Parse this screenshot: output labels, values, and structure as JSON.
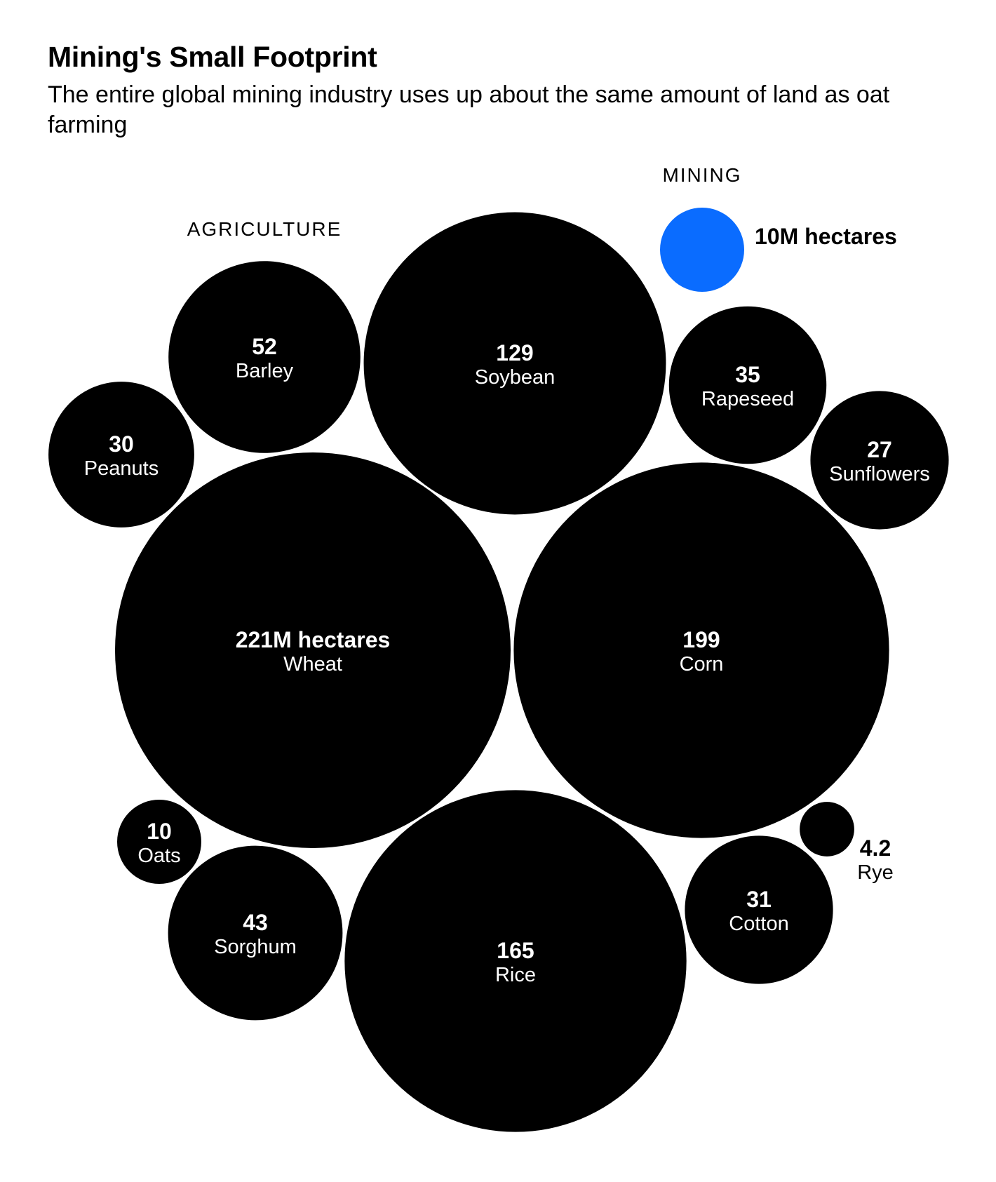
{
  "title": "Mining's Small Footprint",
  "subtitle": "The entire global mining industry uses up about the same amount of land as oat farming",
  "colors": {
    "agriculture": "#000000",
    "mining": "#0a6cff",
    "bubble_text": "#ffffff",
    "outside_text": "#000000"
  },
  "chart_data": {
    "type": "bubble",
    "unit": "M hectares",
    "groups": [
      {
        "label": "AGRICULTURE"
      },
      {
        "label": "MINING"
      }
    ],
    "bubbles": [
      {
        "id": "wheat",
        "group": "AGRICULTURE",
        "name": "Wheat",
        "value": 221,
        "value_label": "221M hectares"
      },
      {
        "id": "corn",
        "group": "AGRICULTURE",
        "name": "Corn",
        "value": 199,
        "value_label": "199"
      },
      {
        "id": "rice",
        "group": "AGRICULTURE",
        "name": "Rice",
        "value": 165,
        "value_label": "165"
      },
      {
        "id": "soybean",
        "group": "AGRICULTURE",
        "name": "Soybean",
        "value": 129,
        "value_label": "129"
      },
      {
        "id": "barley",
        "group": "AGRICULTURE",
        "name": "Barley",
        "value": 52,
        "value_label": "52"
      },
      {
        "id": "sorghum",
        "group": "AGRICULTURE",
        "name": "Sorghum",
        "value": 43,
        "value_label": "43"
      },
      {
        "id": "rapeseed",
        "group": "AGRICULTURE",
        "name": "Rapeseed",
        "value": 35,
        "value_label": "35"
      },
      {
        "id": "cotton",
        "group": "AGRICULTURE",
        "name": "Cotton",
        "value": 31,
        "value_label": "31"
      },
      {
        "id": "peanuts",
        "group": "AGRICULTURE",
        "name": "Peanuts",
        "value": 30,
        "value_label": "30"
      },
      {
        "id": "sunflowers",
        "group": "AGRICULTURE",
        "name": "Sunflowers",
        "value": 27,
        "value_label": "27"
      },
      {
        "id": "oats",
        "group": "AGRICULTURE",
        "name": "Oats",
        "value": 10,
        "value_label": "10"
      },
      {
        "id": "rye",
        "group": "AGRICULTURE",
        "name": "Rye",
        "value": 4.2,
        "value_label": "4.2"
      },
      {
        "id": "mining",
        "group": "MINING",
        "name": "",
        "value": 10,
        "value_label": "10M hectares"
      }
    ]
  }
}
